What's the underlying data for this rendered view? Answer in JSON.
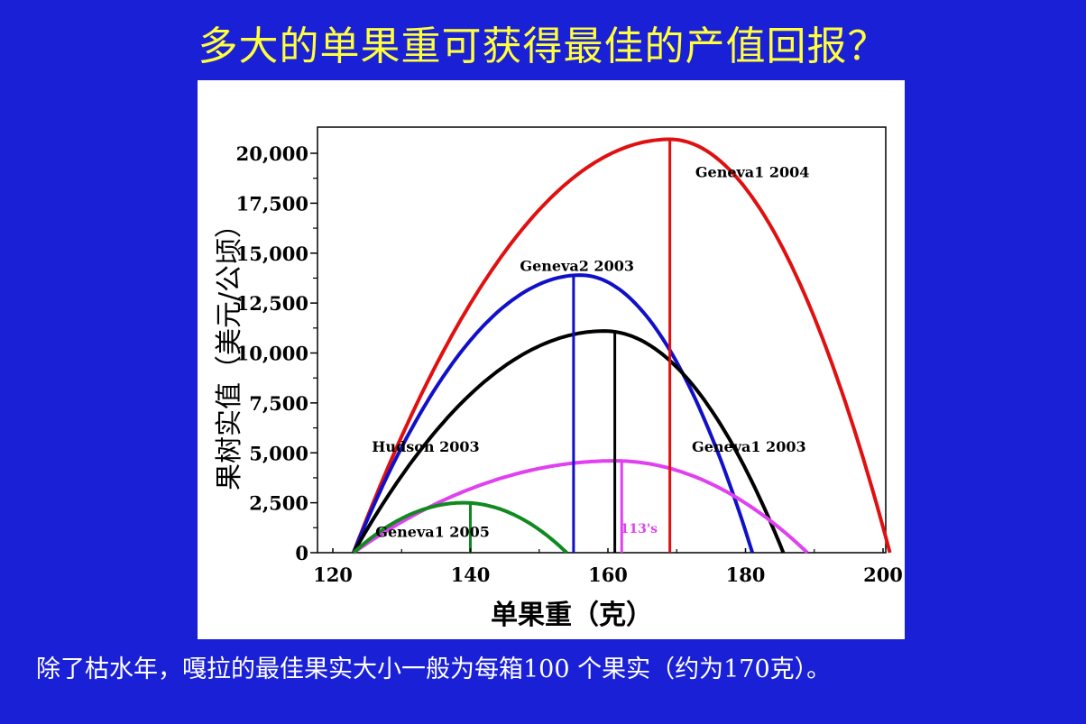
{
  "slide": {
    "title": "多大的单果重可获得最佳的产值回报？",
    "caption": "除了枯水年，嘎拉的最佳果实大小一般为每箱100 个果实（约为170克）。"
  },
  "chart_data": {
    "type": "line",
    "title": "",
    "xlabel": "单果重（克）",
    "ylabel": "果树实值（美元/公顷）",
    "xlim": [
      120,
      200
    ],
    "ylim": [
      0,
      21000
    ],
    "xticks": [
      120,
      140,
      160,
      180,
      200
    ],
    "xtick_labels": [
      "120",
      "140",
      "160",
      "180",
      "200"
    ],
    "yticks": [
      0,
      2500,
      5000,
      7500,
      10000,
      12500,
      15000,
      17500,
      20000
    ],
    "ytick_labels": [
      "0",
      "2,500",
      "5,000",
      "7,500",
      "10,000",
      "12,500",
      "15,000",
      "17,500",
      "20,000"
    ],
    "grid": false,
    "legend": "none",
    "series": [
      {
        "name": "Geneva1 2004",
        "color": "#e01010",
        "start": 123,
        "peak_x": 169,
        "peak_y": 20700,
        "end": 201,
        "optimum_x": 169,
        "label_pos": {
          "x": 181,
          "y": 18800
        }
      },
      {
        "name": "Geneva2 2003",
        "color": "#1010c8",
        "start": 123,
        "peak_x": 156,
        "peak_y": 13900,
        "end": 181,
        "optimum_x": 155,
        "label_pos": {
          "x": 155.5,
          "y": 14100
        }
      },
      {
        "name": "Geneva1 2003",
        "color": "#000000",
        "start": 123,
        "peak_x": 159.5,
        "peak_y": 11100,
        "end": 185.5,
        "optimum_x": 161,
        "label_pos": {
          "x": 180.5,
          "y": 5050
        }
      },
      {
        "name": "113's",
        "color": "#e040f0",
        "start": 123,
        "peak_x": 161,
        "peak_y": 4600,
        "end": 189,
        "optimum_x": 162,
        "label_pos": {
          "x": 164.5,
          "y": 1000
        }
      },
      {
        "name": "Geneva1 2005",
        "color": "#108a20",
        "start": 123,
        "peak_x": 139,
        "peak_y": 2500,
        "end": 154,
        "optimum_x": 140,
        "label_pos": {
          "x": 134.5,
          "y": 800
        }
      },
      {
        "name": "Hudson 2003",
        "color": "#000000",
        "label_only": true,
        "label_pos": {
          "x": 133.5,
          "y": 5050
        }
      }
    ]
  }
}
